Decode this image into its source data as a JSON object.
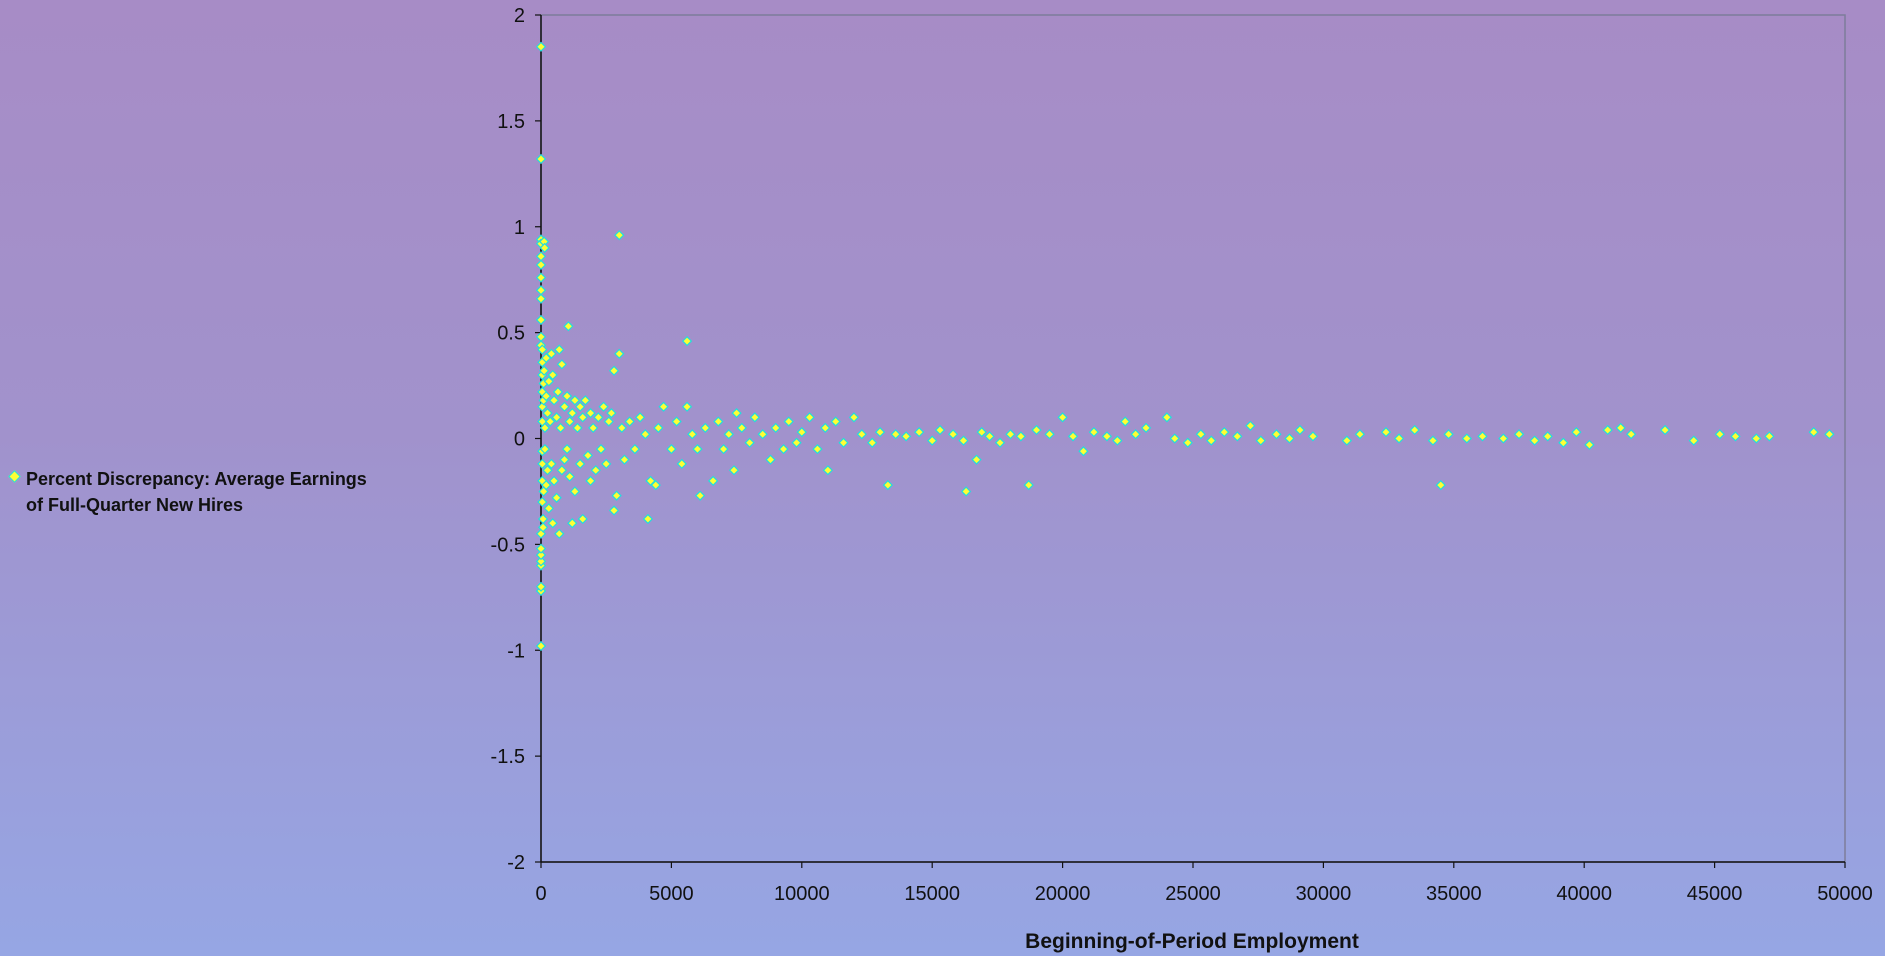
{
  "chart_data": {
    "type": "scatter",
    "title": "",
    "xlabel": "Beginning-of-Period Employment",
    "ylabel": "",
    "xlim": [
      0,
      50000
    ],
    "ylim": [
      -2,
      2
    ],
    "xticks": [
      "0",
      "5000",
      "10000",
      "15000",
      "20000",
      "25000",
      "30000",
      "35000",
      "40000",
      "45000",
      "50000"
    ],
    "yticks": [
      "2",
      "1.5",
      "1",
      "0.5",
      "0",
      "-0.5",
      "-1",
      "-1.5",
      "-2"
    ],
    "grid": false,
    "legend_position": "left",
    "marker_fill": "#ffff33",
    "marker_edge": "#22dddd",
    "series": [
      {
        "name": "Percent Discrepancy: Average Earnings of Full-Quarter New Hires",
        "points": [
          [
            0,
            1.85
          ],
          [
            0,
            1.32
          ],
          [
            0,
            -0.98
          ],
          [
            0,
            -0.72
          ],
          [
            0,
            -0.7
          ],
          [
            0,
            -0.6
          ],
          [
            0,
            -0.58
          ],
          [
            0,
            -0.55
          ],
          [
            0,
            -0.52
          ],
          [
            0,
            -0.45
          ],
          [
            0,
            0.94
          ],
          [
            0,
            0.92
          ],
          [
            0,
            0.86
          ],
          [
            0,
            0.82
          ],
          [
            0,
            0.76
          ],
          [
            0,
            0.7
          ],
          [
            0,
            0.66
          ],
          [
            0,
            0.56
          ],
          [
            0,
            0.48
          ],
          [
            0,
            0.44
          ],
          [
            50,
            0.42
          ],
          [
            50,
            0.36
          ],
          [
            50,
            0.3
          ],
          [
            50,
            0.22
          ],
          [
            50,
            0.15
          ],
          [
            50,
            0.08
          ],
          [
            50,
            -0.06
          ],
          [
            50,
            -0.12
          ],
          [
            50,
            -0.2
          ],
          [
            50,
            -0.3
          ],
          [
            80,
            -0.38
          ],
          [
            80,
            -0.42
          ],
          [
            100,
            0.26
          ],
          [
            100,
            0.18
          ],
          [
            100,
            -0.25
          ],
          [
            120,
            0.32
          ],
          [
            150,
            0.05
          ],
          [
            150,
            -0.05
          ],
          [
            120,
            0.93
          ],
          [
            140,
            0.9
          ],
          [
            200,
            0.38
          ],
          [
            200,
            0.2
          ],
          [
            200,
            -0.22
          ],
          [
            250,
            0.12
          ],
          [
            250,
            -0.15
          ],
          [
            300,
            0.27
          ],
          [
            300,
            -0.33
          ],
          [
            350,
            0.08
          ],
          [
            400,
            0.4
          ],
          [
            400,
            -0.12
          ],
          [
            450,
            0.3
          ],
          [
            450,
            -0.4
          ],
          [
            500,
            0.18
          ],
          [
            500,
            -0.2
          ],
          [
            600,
            0.1
          ],
          [
            600,
            -0.28
          ],
          [
            650,
            0.22
          ],
          [
            700,
            0.42
          ],
          [
            700,
            -0.45
          ],
          [
            750,
            0.05
          ],
          [
            800,
            0.35
          ],
          [
            800,
            -0.15
          ],
          [
            900,
            0.15
          ],
          [
            900,
            -0.1
          ],
          [
            1000,
            0.2
          ],
          [
            1000,
            -0.05
          ],
          [
            1050,
            0.53
          ],
          [
            1100,
            0.08
          ],
          [
            1100,
            -0.18
          ],
          [
            1200,
            0.12
          ],
          [
            1200,
            -0.4
          ],
          [
            1300,
            0.18
          ],
          [
            1300,
            -0.25
          ],
          [
            1400,
            0.05
          ],
          [
            1500,
            0.15
          ],
          [
            1500,
            -0.12
          ],
          [
            1600,
            0.1
          ],
          [
            1600,
            -0.38
          ],
          [
            1700,
            0.18
          ],
          [
            1800,
            -0.08
          ],
          [
            1900,
            0.12
          ],
          [
            1900,
            -0.2
          ],
          [
            2000,
            0.05
          ],
          [
            2100,
            -0.15
          ],
          [
            2200,
            0.1
          ],
          [
            2300,
            -0.05
          ],
          [
            2400,
            0.15
          ],
          [
            2500,
            -0.12
          ],
          [
            2600,
            0.08
          ],
          [
            2700,
            0.12
          ],
          [
            2800,
            0.32
          ],
          [
            2800,
            -0.34
          ],
          [
            2900,
            -0.27
          ],
          [
            3000,
            0.96
          ],
          [
            3000,
            0.4
          ],
          [
            3100,
            0.05
          ],
          [
            3200,
            -0.1
          ],
          [
            3400,
            0.08
          ],
          [
            3600,
            -0.05
          ],
          [
            3800,
            0.1
          ],
          [
            4000,
            0.02
          ],
          [
            4100,
            -0.38
          ],
          [
            4200,
            -0.2
          ],
          [
            4400,
            -0.22
          ],
          [
            4500,
            0.05
          ],
          [
            4700,
            0.15
          ],
          [
            5000,
            -0.05
          ],
          [
            5200,
            0.08
          ],
          [
            5400,
            -0.12
          ],
          [
            5600,
            0.46
          ],
          [
            5600,
            0.15
          ],
          [
            5800,
            0.02
          ],
          [
            6000,
            -0.05
          ],
          [
            6100,
            -0.27
          ],
          [
            6300,
            0.05
          ],
          [
            6600,
            -0.2
          ],
          [
            6800,
            0.08
          ],
          [
            7000,
            -0.05
          ],
          [
            7200,
            0.02
          ],
          [
            7400,
            -0.15
          ],
          [
            7500,
            0.12
          ],
          [
            7700,
            0.05
          ],
          [
            8000,
            -0.02
          ],
          [
            8200,
            0.1
          ],
          [
            8500,
            0.02
          ],
          [
            8800,
            -0.1
          ],
          [
            9000,
            0.05
          ],
          [
            9300,
            -0.05
          ],
          [
            9500,
            0.08
          ],
          [
            9800,
            -0.02
          ],
          [
            10000,
            0.03
          ],
          [
            10300,
            0.1
          ],
          [
            10600,
            -0.05
          ],
          [
            10900,
            0.05
          ],
          [
            11000,
            -0.15
          ],
          [
            11300,
            0.08
          ],
          [
            11600,
            -0.02
          ],
          [
            12000,
            0.1
          ],
          [
            12300,
            0.02
          ],
          [
            12700,
            -0.02
          ],
          [
            13000,
            0.03
          ],
          [
            13300,
            -0.22
          ],
          [
            13600,
            0.02
          ],
          [
            14000,
            0.01
          ],
          [
            14500,
            0.03
          ],
          [
            15000,
            -0.01
          ],
          [
            15300,
            0.04
          ],
          [
            15800,
            0.02
          ],
          [
            16200,
            -0.01
          ],
          [
            16300,
            -0.25
          ],
          [
            16700,
            -0.1
          ],
          [
            16900,
            0.03
          ],
          [
            17200,
            0.01
          ],
          [
            17600,
            -0.02
          ],
          [
            18000,
            0.02
          ],
          [
            18400,
            0.01
          ],
          [
            18700,
            -0.22
          ],
          [
            19000,
            0.04
          ],
          [
            19500,
            0.02
          ],
          [
            20000,
            0.1
          ],
          [
            20400,
            0.01
          ],
          [
            20800,
            -0.06
          ],
          [
            21200,
            0.03
          ],
          [
            21700,
            0.01
          ],
          [
            22100,
            -0.01
          ],
          [
            22400,
            0.08
          ],
          [
            22800,
            0.02
          ],
          [
            23200,
            0.05
          ],
          [
            24000,
            0.1
          ],
          [
            24300,
            0.0
          ],
          [
            24800,
            -0.02
          ],
          [
            25300,
            0.02
          ],
          [
            25700,
            -0.01
          ],
          [
            26200,
            0.03
          ],
          [
            26700,
            0.01
          ],
          [
            27200,
            0.06
          ],
          [
            27600,
            -0.01
          ],
          [
            28200,
            0.02
          ],
          [
            28700,
            0.0
          ],
          [
            29100,
            0.04
          ],
          [
            29600,
            0.01
          ],
          [
            30900,
            -0.01
          ],
          [
            31400,
            0.02
          ],
          [
            32400,
            0.03
          ],
          [
            32900,
            0.0
          ],
          [
            33500,
            0.04
          ],
          [
            34200,
            -0.01
          ],
          [
            34500,
            -0.22
          ],
          [
            34800,
            0.02
          ],
          [
            35500,
            0.0
          ],
          [
            36100,
            0.01
          ],
          [
            36900,
            0.0
          ],
          [
            37500,
            0.02
          ],
          [
            38100,
            -0.01
          ],
          [
            38600,
            0.01
          ],
          [
            39200,
            -0.02
          ],
          [
            39700,
            0.03
          ],
          [
            40200,
            -0.03
          ],
          [
            40900,
            0.04
          ],
          [
            41400,
            0.05
          ],
          [
            41800,
            0.02
          ],
          [
            43100,
            0.04
          ],
          [
            44200,
            -0.01
          ],
          [
            45200,
            0.02
          ],
          [
            45800,
            0.01
          ],
          [
            46600,
            0.0
          ],
          [
            47100,
            0.01
          ],
          [
            48800,
            0.03
          ],
          [
            49400,
            0.02
          ]
        ]
      }
    ]
  }
}
